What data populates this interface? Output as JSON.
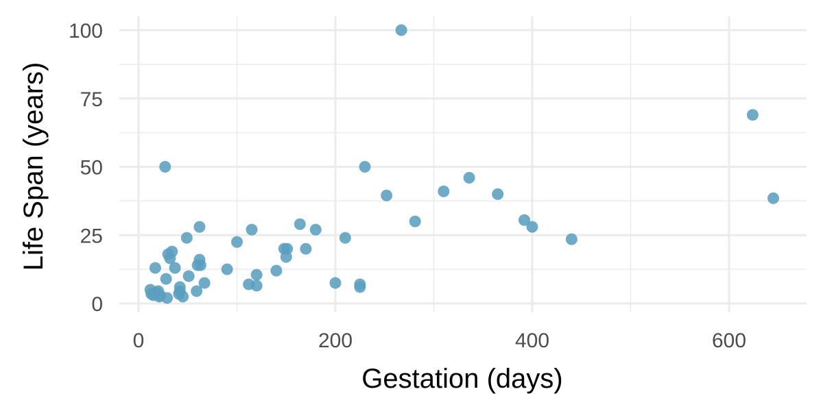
{
  "chart_data": {
    "type": "scatter",
    "title": "",
    "xlabel": "Gestation (days)",
    "ylabel": "Life Span (years)",
    "xlim": [
      0,
      675
    ],
    "ylim": [
      0,
      100
    ],
    "x_ticks": [
      0,
      200,
      400,
      600
    ],
    "y_ticks": [
      0,
      25,
      50,
      75,
      100
    ],
    "x_tick_labels": [
      "0",
      "200",
      "400",
      "600"
    ],
    "y_tick_labels": [
      "0",
      "25",
      "50",
      "75",
      "100"
    ],
    "grid": true,
    "point_color": "#5b9ebf",
    "points": [
      {
        "x": 12,
        "y": 5
      },
      {
        "x": 13,
        "y": 3.5
      },
      {
        "x": 15,
        "y": 3
      },
      {
        "x": 17,
        "y": 13
      },
      {
        "x": 18,
        "y": 4
      },
      {
        "x": 20,
        "y": 4.5
      },
      {
        "x": 21,
        "y": 2.5
      },
      {
        "x": 22,
        "y": 3
      },
      {
        "x": 27,
        "y": 50
      },
      {
        "x": 28,
        "y": 9
      },
      {
        "x": 29,
        "y": 2
      },
      {
        "x": 30,
        "y": 18
      },
      {
        "x": 32,
        "y": 16.5
      },
      {
        "x": 34,
        "y": 19
      },
      {
        "x": 37,
        "y": 13
      },
      {
        "x": 41,
        "y": 3.5
      },
      {
        "x": 42,
        "y": 6
      },
      {
        "x": 42,
        "y": 4.5
      },
      {
        "x": 45,
        "y": 2.5
      },
      {
        "x": 49,
        "y": 24
      },
      {
        "x": 51,
        "y": 10
      },
      {
        "x": 59,
        "y": 4.5
      },
      {
        "x": 60,
        "y": 14
      },
      {
        "x": 62,
        "y": 16
      },
      {
        "x": 62,
        "y": 28
      },
      {
        "x": 63,
        "y": 14
      },
      {
        "x": 67,
        "y": 7.5
      },
      {
        "x": 90,
        "y": 12.5
      },
      {
        "x": 100,
        "y": 22.5
      },
      {
        "x": 112,
        "y": 7
      },
      {
        "x": 115,
        "y": 27
      },
      {
        "x": 120,
        "y": 10.5
      },
      {
        "x": 120,
        "y": 6.5
      },
      {
        "x": 140,
        "y": 12
      },
      {
        "x": 148,
        "y": 20
      },
      {
        "x": 150,
        "y": 17
      },
      {
        "x": 151,
        "y": 20
      },
      {
        "x": 164,
        "y": 29
      },
      {
        "x": 170,
        "y": 20
      },
      {
        "x": 180,
        "y": 27
      },
      {
        "x": 200,
        "y": 7.5
      },
      {
        "x": 210,
        "y": 24
      },
      {
        "x": 225,
        "y": 7
      },
      {
        "x": 225,
        "y": 6
      },
      {
        "x": 230,
        "y": 50
      },
      {
        "x": 252,
        "y": 39.5
      },
      {
        "x": 267,
        "y": 100
      },
      {
        "x": 281,
        "y": 30
      },
      {
        "x": 310,
        "y": 41
      },
      {
        "x": 336,
        "y": 46
      },
      {
        "x": 365,
        "y": 40
      },
      {
        "x": 392,
        "y": 30.5
      },
      {
        "x": 400,
        "y": 28
      },
      {
        "x": 440,
        "y": 23.5
      },
      {
        "x": 624,
        "y": 69
      },
      {
        "x": 645,
        "y": 38.5
      }
    ]
  }
}
